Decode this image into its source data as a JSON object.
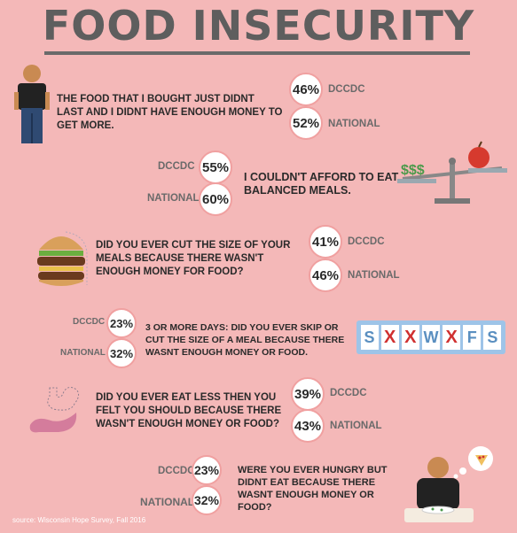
{
  "title": "FOOD INSECURITY",
  "rows": [
    {
      "question": "THE FOOD THAT I BOUGHT JUST DIDNT LAST AND I DIDNT HAVE ENOUGH MONEY TO GET MORE.",
      "dccdc_pct": "46%",
      "national_pct": "52%",
      "dccdc_label": "DCCDC",
      "national_label": "NATIONAL"
    },
    {
      "question": "I COULDN'T AFFORD TO EAT BALANCED MEALS.",
      "dccdc_pct": "55%",
      "national_pct": "60%",
      "dccdc_label": "DCCDC",
      "national_label": "NATIONAL"
    },
    {
      "question": "DID YOU EVER CUT THE SIZE OF YOUR MEALS BECAUSE THERE WASN'T ENOUGH MONEY FOR FOOD?",
      "dccdc_pct": "41%",
      "national_pct": "46%",
      "dccdc_label": "DCCDC",
      "national_label": "NATIONAL"
    },
    {
      "question": "3 OR MORE DAYS: DID YOU EVER SKIP OR CUT THE SIZE OF A MEAL BECAUSE THERE WASNT ENOUGH MONEY OR FOOD.",
      "dccdc_pct": "23%",
      "national_pct": "32%",
      "dccdc_label": "DCCDC",
      "national_label": "NATIONAL"
    },
    {
      "question": "DID YOU EVER EAT LESS THEN YOU FELT YOU SHOULD BECAUSE THERE WASN'T ENOUGH MONEY OR FOOD?",
      "dccdc_pct": "39%",
      "national_pct": "43%",
      "dccdc_label": "DCCDC",
      "national_label": "NATIONAL"
    },
    {
      "question": "WERE YOU EVER HUNGRY BUT DIDNT EAT BECAUSE THERE WASNT ENOUGH MONEY OR FOOD?",
      "dccdc_pct": "23%",
      "national_pct": "32%",
      "dccdc_label": "DCCDC",
      "national_label": "NATIONAL"
    }
  ],
  "scale_icon_text": "$$$",
  "calendar_letters": [
    "S",
    "X",
    "X",
    "W",
    "X",
    "F",
    "S"
  ],
  "source": "source: Wisconsin Hope Survey, Fall 2016",
  "colors": {
    "background": "#f4b8b8",
    "title": "#5e5e5e",
    "circle_border": "#f0a0a0",
    "label": "#6a6a6a",
    "calendar_x": "#d03030",
    "calendar_letter": "#5a8fc0"
  }
}
